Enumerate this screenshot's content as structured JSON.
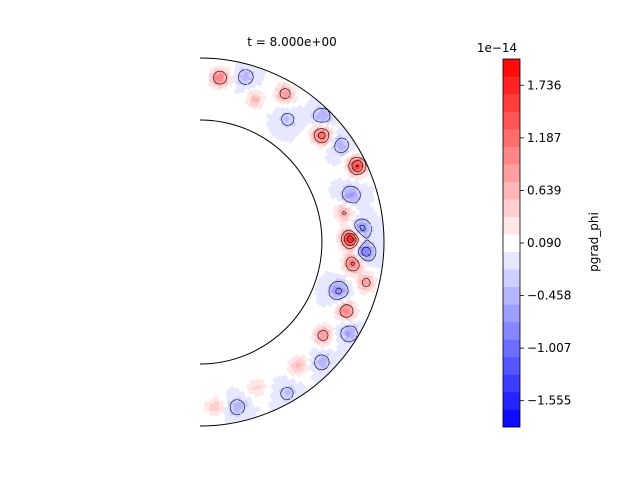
{
  "chart_data": {
    "type": "heatmap",
    "title": "t = 8.000e+00",
    "colorbar": {
      "label": "pgrad_phi",
      "offset_text": "1e−14",
      "ticks": [
        "1.736",
        "1.187",
        "0.639",
        "0.090",
        "−0.458",
        "−1.007",
        "−1.555"
      ],
      "tick_values": [
        1.736,
        1.187,
        0.639,
        0.09,
        -0.458,
        -1.007,
        -1.555
      ],
      "vmin": -1.83,
      "vmax": 2.01,
      "levels": 21,
      "cmap": "bwr"
    },
    "domain": "half annulus (meridional shell slice)",
    "features": [
      {
        "theta": 1.45,
        "r": 0.9,
        "value": 1.1
      },
      {
        "theta": 1.3,
        "r": 0.93,
        "value": -0.5
      },
      {
        "theta": 1.2,
        "r": 0.83,
        "value": 0.6
      },
      {
        "theta": 1.05,
        "r": 0.93,
        "value": 0.9
      },
      {
        "theta": 0.95,
        "r": 0.82,
        "value": -0.4
      },
      {
        "theta": 0.8,
        "r": 0.95,
        "value": -0.6
      },
      {
        "theta": 0.72,
        "r": 0.88,
        "value": 1.3
      },
      {
        "theta": 0.6,
        "r": 0.93,
        "value": -0.5
      },
      {
        "theta": 0.45,
        "r": 0.95,
        "value": 1.6
      },
      {
        "theta": 0.3,
        "r": 0.86,
        "value": -0.7
      },
      {
        "theta": 0.2,
        "r": 0.8,
        "value": 0.7
      },
      {
        "theta": 0.08,
        "r": 0.88,
        "value": -0.9
      },
      {
        "theta": 0.02,
        "r": 0.82,
        "value": 1.9
      },
      {
        "theta": -0.06,
        "r": 0.9,
        "value": -1.0
      },
      {
        "theta": -0.14,
        "r": 0.84,
        "value": 1.2
      },
      {
        "theta": -0.24,
        "r": 0.93,
        "value": 0.8
      },
      {
        "theta": -0.34,
        "r": 0.8,
        "value": -0.8
      },
      {
        "theta": -0.44,
        "r": 0.88,
        "value": 1.1
      },
      {
        "theta": -0.55,
        "r": 0.95,
        "value": -0.6
      },
      {
        "theta": -0.65,
        "r": 0.84,
        "value": 0.9
      },
      {
        "theta": -0.78,
        "r": 0.93,
        "value": -0.5
      },
      {
        "theta": -0.9,
        "r": 0.86,
        "value": 0.6
      },
      {
        "theta": -1.05,
        "r": 0.95,
        "value": -0.4
      },
      {
        "theta": -1.2,
        "r": 0.85,
        "value": 0.4
      },
      {
        "theta": -1.35,
        "r": 0.92,
        "value": -0.5
      },
      {
        "theta": -1.48,
        "r": 0.9,
        "value": 0.5
      }
    ]
  }
}
